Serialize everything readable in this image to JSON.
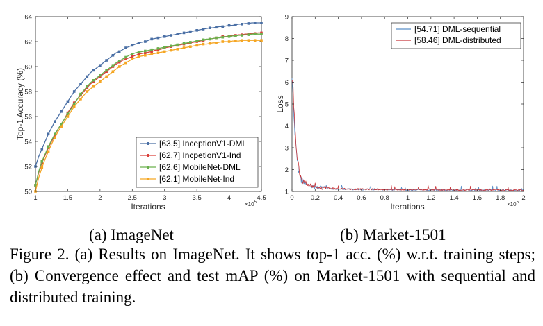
{
  "subcaptions": {
    "a": "(a) ImageNet",
    "b": "(b) Market-1501"
  },
  "caption": "Figure 2. (a) Results on ImageNet. It shows top-1 acc. (%) w.r.t. training steps; (b) Convergence effect and test mAP (%) on Market-1501 with sequential and distributed training.",
  "chart_data": [
    {
      "type": "line",
      "title": "",
      "xlabel": "Iterations",
      "ylabel": "Top-1 Accuracy (%)",
      "x_exponent": "×10",
      "x_exponent_power": "5",
      "xlim": [
        1,
        4.5
      ],
      "ylim": [
        50,
        64
      ],
      "xticks": [
        "1",
        "1.5",
        "2",
        "2.5",
        "3",
        "3.5",
        "4",
        "4.5"
      ],
      "xtick_values": [
        1,
        1.5,
        2,
        2.5,
        3,
        3.5,
        4,
        4.5
      ],
      "yticks": [
        "50",
        "52",
        "54",
        "56",
        "58",
        "60",
        "62",
        "64"
      ],
      "ytick_values": [
        50,
        52,
        54,
        56,
        58,
        60,
        62,
        64
      ],
      "legend_position": "bottom-right",
      "x": [
        1.0,
        1.05,
        1.1,
        1.15,
        1.2,
        1.25,
        1.3,
        1.35,
        1.4,
        1.45,
        1.5,
        1.55,
        1.6,
        1.65,
        1.7,
        1.75,
        1.8,
        1.85,
        1.9,
        1.95,
        2.0,
        2.05,
        2.1,
        2.15,
        2.2,
        2.25,
        2.3,
        2.35,
        2.4,
        2.45,
        2.5,
        2.55,
        2.6,
        2.65,
        2.7,
        2.75,
        2.8,
        2.85,
        2.9,
        2.95,
        3.0,
        3.05,
        3.1,
        3.15,
        3.2,
        3.25,
        3.3,
        3.35,
        3.4,
        3.45,
        3.5,
        3.55,
        3.6,
        3.65,
        3.7,
        3.75,
        3.8,
        3.85,
        3.9,
        3.95,
        4.0,
        4.05,
        4.1,
        4.15,
        4.2,
        4.25,
        4.3,
        4.35,
        4.4,
        4.45,
        4.5
      ],
      "series": [
        {
          "name": "[63.5] InceptionV1-DML",
          "color": "#4a6fa5",
          "values": [
            52.0,
            52.8,
            53.4,
            54.0,
            54.6,
            55.1,
            55.6,
            56.0,
            56.4,
            56.8,
            57.2,
            57.6,
            58.0,
            58.3,
            58.6,
            58.9,
            59.2,
            59.5,
            59.7,
            59.9,
            60.1,
            60.3,
            60.5,
            60.7,
            60.9,
            61.1,
            61.2,
            61.35,
            61.5,
            61.6,
            61.7,
            61.8,
            61.9,
            61.95,
            62.0,
            62.1,
            62.2,
            62.25,
            62.3,
            62.35,
            62.4,
            62.45,
            62.5,
            62.55,
            62.6,
            62.65,
            62.7,
            62.75,
            62.8,
            62.85,
            62.9,
            62.95,
            63.0,
            63.05,
            63.1,
            63.1,
            63.15,
            63.2,
            63.2,
            63.25,
            63.3,
            63.3,
            63.35,
            63.4,
            63.4,
            63.45,
            63.45,
            63.5,
            63.5,
            63.5,
            63.5
          ]
        },
        {
          "name": "[62.7] IncpetionV1-Ind",
          "color": "#d9403a",
          "values": [
            50.5,
            51.5,
            52.3,
            52.9,
            53.5,
            54.0,
            54.5,
            55.0,
            55.4,
            55.8,
            56.3,
            56.7,
            57.1,
            57.4,
            57.7,
            58.0,
            58.3,
            58.6,
            58.8,
            59.0,
            59.2,
            59.4,
            59.6,
            59.8,
            60.0,
            60.2,
            60.35,
            60.5,
            60.6,
            60.7,
            60.8,
            60.9,
            61.0,
            61.05,
            61.1,
            61.15,
            61.2,
            61.3,
            61.35,
            61.4,
            61.5,
            61.55,
            61.6,
            61.65,
            61.7,
            61.75,
            61.8,
            61.85,
            61.9,
            61.95,
            62.0,
            62.05,
            62.1,
            62.15,
            62.2,
            62.25,
            62.3,
            62.35,
            62.4,
            62.4,
            62.45,
            62.5,
            62.5,
            62.55,
            62.55,
            62.6,
            62.6,
            62.65,
            62.65,
            62.7,
            62.7
          ]
        },
        {
          "name": "[62.6] MobileNet-DML",
          "color": "#6ab04c",
          "values": [
            50.5,
            51.6,
            52.4,
            53.0,
            53.6,
            54.1,
            54.6,
            55.0,
            55.4,
            55.8,
            56.2,
            56.6,
            57.0,
            57.4,
            57.8,
            58.1,
            58.4,
            58.7,
            58.9,
            59.1,
            59.3,
            59.5,
            59.7,
            59.9,
            60.1,
            60.3,
            60.45,
            60.6,
            60.75,
            60.9,
            61.0,
            61.1,
            61.15,
            61.2,
            61.25,
            61.3,
            61.35,
            61.4,
            61.45,
            61.5,
            61.55,
            61.6,
            61.65,
            61.7,
            61.75,
            61.8,
            61.85,
            61.9,
            61.95,
            62.0,
            62.05,
            62.1,
            62.15,
            62.2,
            62.2,
            62.25,
            62.3,
            62.3,
            62.35,
            62.4,
            62.4,
            62.45,
            62.45,
            62.5,
            62.5,
            62.55,
            62.55,
            62.6,
            62.6,
            62.6,
            62.6
          ]
        },
        {
          "name": "[62.1] MobileNet-Ind",
          "color": "#f5a623",
          "values": [
            50.0,
            51.1,
            51.9,
            52.6,
            53.2,
            53.8,
            54.3,
            54.8,
            55.2,
            55.6,
            56.0,
            56.4,
            56.8,
            57.1,
            57.4,
            57.7,
            58.0,
            58.2,
            58.4,
            58.6,
            58.8,
            59.0,
            59.2,
            59.4,
            59.6,
            59.8,
            60.0,
            60.15,
            60.3,
            60.45,
            60.6,
            60.7,
            60.8,
            60.85,
            60.9,
            60.95,
            61.0,
            61.05,
            61.1,
            61.15,
            61.2,
            61.25,
            61.3,
            61.35,
            61.4,
            61.45,
            61.5,
            61.55,
            61.6,
            61.65,
            61.7,
            61.75,
            61.8,
            61.8,
            61.85,
            61.9,
            61.9,
            61.95,
            62.0,
            62.0,
            62.0,
            62.05,
            62.05,
            62.05,
            62.1,
            62.1,
            62.1,
            62.1,
            62.1,
            62.1,
            62.1
          ]
        }
      ]
    },
    {
      "type": "line",
      "title": "",
      "xlabel": "Iterations",
      "ylabel": "Loss",
      "x_exponent": "×10",
      "x_exponent_power": "5",
      "xlim": [
        0,
        2
      ],
      "ylim": [
        1,
        9
      ],
      "xticks": [
        "0",
        "0.2",
        "0.4",
        "0.6",
        "0.8",
        "1",
        "1.2",
        "1.4",
        "1.6",
        "1.8",
        "2"
      ],
      "xtick_values": [
        0,
        0.2,
        0.4,
        0.6,
        0.8,
        1,
        1.2,
        1.4,
        1.6,
        1.8,
        2
      ],
      "yticks": [
        "1",
        "2",
        "3",
        "4",
        "5",
        "6",
        "7",
        "8",
        "9"
      ],
      "ytick_values": [
        1,
        2,
        3,
        4,
        5,
        6,
        7,
        8,
        9
      ],
      "legend_position": "top-right",
      "x": [
        0.0,
        0.01,
        0.02,
        0.03,
        0.04,
        0.05,
        0.06,
        0.07,
        0.08,
        0.09,
        0.1,
        0.12,
        0.14,
        0.16,
        0.18,
        0.2,
        0.25,
        0.3,
        0.35,
        0.4,
        0.5,
        0.6,
        0.7,
        0.8,
        0.9,
        1.0,
        1.1,
        1.2,
        1.3,
        1.4,
        1.5,
        1.6,
        1.7,
        1.8,
        1.9,
        2.0
      ],
      "series": [
        {
          "name": "[54.71] DML-sequential",
          "color": "#5b8fc7",
          "values": [
            6.2,
            5.3,
            4.1,
            3.3,
            2.6,
            2.2,
            1.9,
            1.7,
            1.6,
            1.5,
            1.45,
            1.35,
            1.3,
            1.25,
            1.22,
            1.2,
            1.16,
            1.14,
            1.12,
            1.11,
            1.1,
            1.09,
            1.09,
            1.08,
            1.08,
            1.07,
            1.07,
            1.07,
            1.06,
            1.06,
            1.06,
            1.06,
            1.05,
            1.05,
            1.05,
            1.05
          ]
        },
        {
          "name": "[58.46] DML-distributed",
          "color": "#c8363a",
          "values": [
            6.0,
            5.6,
            4.4,
            3.6,
            2.8,
            2.4,
            2.0,
            1.8,
            1.65,
            1.55,
            1.48,
            1.4,
            1.33,
            1.28,
            1.24,
            1.21,
            1.17,
            1.15,
            1.13,
            1.12,
            1.11,
            1.1,
            1.1,
            1.09,
            1.09,
            1.08,
            1.08,
            1.08,
            1.07,
            1.07,
            1.07,
            1.07,
            1.06,
            1.06,
            1.06,
            1.06
          ]
        }
      ]
    }
  ]
}
